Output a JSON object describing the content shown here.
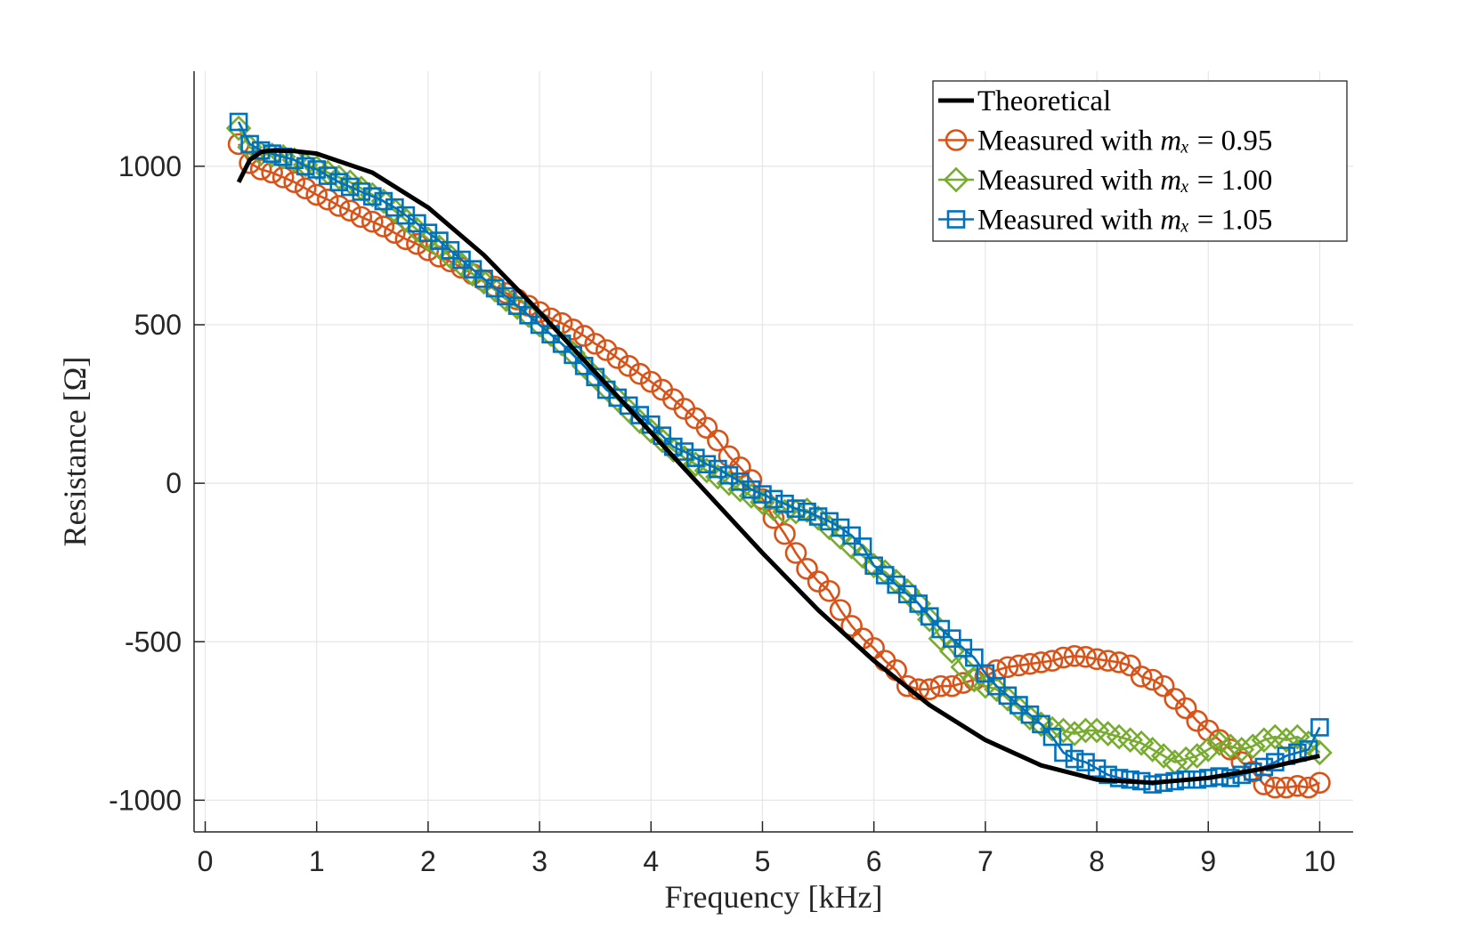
{
  "chart_data": {
    "type": "line",
    "title": "",
    "xlabel": "Frequency [kHz]",
    "ylabel": "Resistance [Ω]",
    "xlim": [
      -0.1,
      10.3
    ],
    "ylim": [
      -1100,
      1300
    ],
    "xticks": [
      0,
      1,
      2,
      3,
      4,
      5,
      6,
      7,
      8,
      9,
      10
    ],
    "yticks": [
      -1000,
      -500,
      0,
      500,
      1000
    ],
    "xtick_labels": [
      "0",
      "1",
      "2",
      "3",
      "4",
      "5",
      "6",
      "7",
      "8",
      "9",
      "10"
    ],
    "ytick_labels": [
      "-1000",
      "-500",
      "0",
      "500",
      "1000"
    ],
    "grid": true,
    "legend_position": "top-right",
    "colors": {
      "theoretical": "#000000",
      "m095": "#D95319",
      "m100": "#77AC30",
      "m105": "#0072BD",
      "grid": "#e6e6e6",
      "axis": "#262626"
    },
    "series": [
      {
        "key": "theoretical",
        "name": "Theoretical",
        "legend_prefix": "Theoretical",
        "legend_math": "",
        "legend_suffix": "",
        "marker": "none",
        "x": [
          0.3,
          0.4,
          0.5,
          0.6,
          0.8,
          1.0,
          1.5,
          2.0,
          2.5,
          3.0,
          3.5,
          4.0,
          4.5,
          5.0,
          5.5,
          6.0,
          6.5,
          7.0,
          7.5,
          8.0,
          8.5,
          9.0,
          9.5,
          10.0
        ],
        "y": [
          950,
          1020,
          1045,
          1050,
          1048,
          1040,
          980,
          870,
          720,
          540,
          350,
          160,
          -30,
          -220,
          -400,
          -560,
          -700,
          -810,
          -890,
          -935,
          -945,
          -930,
          -900,
          -860
        ]
      },
      {
        "key": "m095",
        "name": "Measured with m_x = 0.95",
        "legend_prefix": "Measured with ",
        "legend_math": "mₓ",
        "legend_suffix": " = 0.95",
        "marker": "circle",
        "x": [
          0.3,
          0.4,
          0.5,
          0.6,
          0.7,
          0.8,
          0.9,
          1.0,
          1.1,
          1.2,
          1.3,
          1.4,
          1.5,
          1.6,
          1.7,
          1.8,
          1.9,
          2.0,
          2.1,
          2.2,
          2.3,
          2.4,
          2.5,
          2.6,
          2.7,
          2.8,
          2.9,
          3.0,
          3.1,
          3.2,
          3.3,
          3.4,
          3.5,
          3.6,
          3.7,
          3.8,
          3.9,
          4.0,
          4.1,
          4.2,
          4.3,
          4.4,
          4.5,
          4.6,
          4.7,
          4.8,
          4.9,
          5.0,
          5.1,
          5.2,
          5.3,
          5.4,
          5.5,
          5.6,
          5.7,
          5.8,
          5.9,
          6.0,
          6.1,
          6.2,
          6.3,
          6.4,
          6.5,
          6.6,
          6.7,
          6.8,
          6.9,
          7.0,
          7.1,
          7.2,
          7.3,
          7.4,
          7.5,
          7.6,
          7.7,
          7.8,
          7.9,
          8.0,
          8.1,
          8.2,
          8.3,
          8.4,
          8.5,
          8.6,
          8.7,
          8.8,
          8.9,
          9.0,
          9.1,
          9.2,
          9.3,
          9.4,
          9.5,
          9.6,
          9.7,
          9.8,
          9.9,
          10.0
        ],
        "y": [
          1070,
          1010,
          990,
          980,
          965,
          950,
          930,
          910,
          895,
          875,
          860,
          840,
          825,
          810,
          790,
          770,
          755,
          735,
          715,
          700,
          680,
          660,
          640,
          620,
          600,
          580,
          560,
          540,
          520,
          505,
          485,
          465,
          440,
          420,
          395,
          370,
          345,
          320,
          295,
          265,
          235,
          205,
          175,
          135,
          85,
          50,
          10,
          -50,
          -110,
          -160,
          -220,
          -270,
          -310,
          -340,
          -400,
          -450,
          -490,
          -520,
          -560,
          -590,
          -640,
          -650,
          -650,
          -640,
          -640,
          -630,
          -620,
          -610,
          -590,
          -580,
          -575,
          -570,
          -565,
          -560,
          -550,
          -545,
          -548,
          -555,
          -560,
          -565,
          -575,
          -610,
          -620,
          -640,
          -680,
          -710,
          -750,
          -780,
          -810,
          -840,
          -880,
          -910,
          -950,
          -960,
          -960,
          -955,
          -960,
          -945
        ]
      },
      {
        "key": "m100",
        "name": "Measured with m_x = 1.00",
        "legend_prefix": "Measured with ",
        "legend_math": "mₓ",
        "legend_suffix": " = 1.00",
        "marker": "diamond",
        "x": [
          0.3,
          0.4,
          0.5,
          0.6,
          0.7,
          0.8,
          0.9,
          1.0,
          1.1,
          1.2,
          1.3,
          1.4,
          1.5,
          1.6,
          1.7,
          1.8,
          1.9,
          2.0,
          2.1,
          2.2,
          2.3,
          2.4,
          2.5,
          2.6,
          2.7,
          2.8,
          2.9,
          3.0,
          3.1,
          3.2,
          3.3,
          3.4,
          3.5,
          3.6,
          3.7,
          3.8,
          3.9,
          4.0,
          4.1,
          4.2,
          4.3,
          4.4,
          4.5,
          4.6,
          4.7,
          4.8,
          4.9,
          5.0,
          5.1,
          5.2,
          5.3,
          5.4,
          5.5,
          5.6,
          5.7,
          5.8,
          5.9,
          6.0,
          6.1,
          6.2,
          6.3,
          6.4,
          6.5,
          6.6,
          6.7,
          6.8,
          6.9,
          7.0,
          7.1,
          7.2,
          7.3,
          7.4,
          7.5,
          7.6,
          7.7,
          7.8,
          7.9,
          8.0,
          8.1,
          8.2,
          8.3,
          8.4,
          8.5,
          8.6,
          8.7,
          8.8,
          8.9,
          9.0,
          9.1,
          9.2,
          9.3,
          9.4,
          9.5,
          9.6,
          9.7,
          9.8,
          9.9,
          10.0
        ],
        "y": [
          1120,
          1060,
          1040,
          1035,
          1030,
          1020,
          1005,
          995,
          980,
          965,
          950,
          930,
          910,
          890,
          860,
          830,
          800,
          770,
          745,
          715,
          690,
          660,
          635,
          610,
          580,
          555,
          530,
          500,
          470,
          440,
          410,
          370,
          335,
          300,
          265,
          230,
          195,
          165,
          135,
          105,
          80,
          60,
          40,
          20,
          0,
          -20,
          -40,
          -60,
          -80,
          -90,
          -90,
          -85,
          -110,
          -140,
          -170,
          -200,
          -230,
          -260,
          -280,
          -310,
          -340,
          -380,
          -430,
          -490,
          -530,
          -580,
          -620,
          -640,
          -650,
          -680,
          -710,
          -740,
          -760,
          -775,
          -780,
          -790,
          -780,
          -780,
          -790,
          -800,
          -810,
          -820,
          -840,
          -860,
          -880,
          -870,
          -860,
          -840,
          -820,
          -830,
          -840,
          -830,
          -810,
          -800,
          -810,
          -800,
          -820,
          -850
        ]
      },
      {
        "key": "m105",
        "name": "Measured with m_x = 1.05",
        "legend_prefix": "Measured with ",
        "legend_math": "mₓ",
        "legend_suffix": " = 1.05",
        "marker": "square",
        "x": [
          0.3,
          0.4,
          0.5,
          0.6,
          0.7,
          0.8,
          0.9,
          1.0,
          1.1,
          1.2,
          1.3,
          1.4,
          1.5,
          1.6,
          1.7,
          1.8,
          1.9,
          2.0,
          2.1,
          2.2,
          2.3,
          2.4,
          2.5,
          2.6,
          2.7,
          2.8,
          2.9,
          3.0,
          3.1,
          3.2,
          3.3,
          3.4,
          3.5,
          3.6,
          3.7,
          3.8,
          3.9,
          4.0,
          4.1,
          4.2,
          4.3,
          4.4,
          4.5,
          4.6,
          4.7,
          4.8,
          4.9,
          5.0,
          5.1,
          5.2,
          5.3,
          5.4,
          5.5,
          5.6,
          5.7,
          5.8,
          5.9,
          6.0,
          6.1,
          6.2,
          6.3,
          6.4,
          6.5,
          6.6,
          6.7,
          6.8,
          6.9,
          7.0,
          7.1,
          7.2,
          7.3,
          7.4,
          7.5,
          7.6,
          7.7,
          7.8,
          7.9,
          8.0,
          8.1,
          8.2,
          8.3,
          8.4,
          8.5,
          8.6,
          8.7,
          8.8,
          8.9,
          9.0,
          9.1,
          9.2,
          9.3,
          9.4,
          9.5,
          9.6,
          9.7,
          9.8,
          9.9,
          10.0
        ],
        "y": [
          1140,
          1070,
          1050,
          1040,
          1030,
          1020,
          1000,
          990,
          970,
          950,
          935,
          920,
          905,
          890,
          870,
          845,
          820,
          790,
          765,
          735,
          705,
          675,
          645,
          615,
          590,
          560,
          530,
          500,
          470,
          440,
          405,
          370,
          335,
          295,
          270,
          245,
          215,
          185,
          150,
          115,
          100,
          80,
          60,
          45,
          25,
          5,
          -20,
          -35,
          -50,
          -65,
          -80,
          -90,
          -105,
          -120,
          -140,
          -165,
          -200,
          -260,
          -290,
          -320,
          -350,
          -380,
          -420,
          -460,
          -490,
          -520,
          -550,
          -600,
          -640,
          -670,
          -700,
          -730,
          -760,
          -800,
          -850,
          -870,
          -880,
          -900,
          -920,
          -930,
          -935,
          -940,
          -950,
          -945,
          -940,
          -935,
          -935,
          -930,
          -925,
          -930,
          -920,
          -910,
          -895,
          -880,
          -860,
          -850,
          -840,
          -770
        ]
      }
    ]
  }
}
